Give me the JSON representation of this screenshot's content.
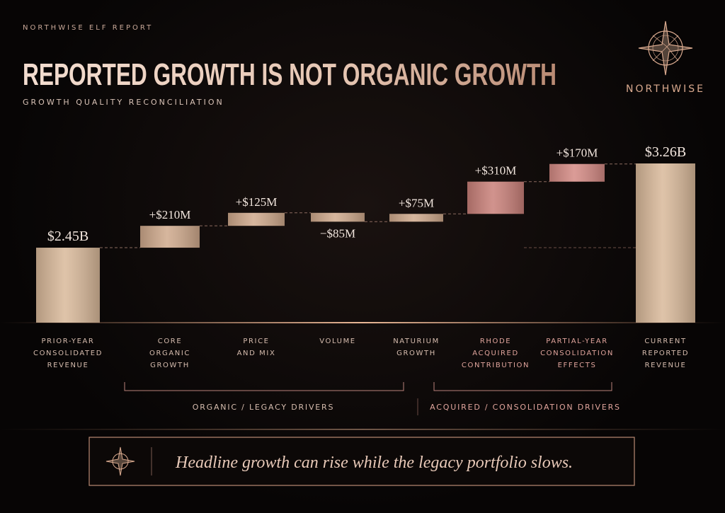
{
  "header": {
    "kicker": "NORTHWISE ELF REPORT",
    "title": "REPORTED GROWTH IS NOT ORGANIC GROWTH",
    "subtitle": "GROWTH QUALITY RECONCILIATION",
    "brand": "NORTHWISE"
  },
  "chart_data": {
    "type": "waterfall",
    "categories": [
      "PRIOR-YEAR\nCONSOLIDATED\nREVENUE",
      "CORE\nORGANIC\nGROWTH",
      "PRICE\nAND MIX",
      "VOLUME",
      "NATURIUM\nGROWTH",
      "RHODE\nACQUIRED\nCONTRIBUTION",
      "PARTIAL-YEAR\nCONSOLIDATION\nEFFECTS",
      "CURRENT\nREPORTED\nREVENUE"
    ],
    "values": [
      2450,
      210,
      125,
      -85,
      75,
      310,
      170,
      3260
    ],
    "value_labels": [
      "$2.45B",
      "+$210M",
      "+$125M",
      "−$85M",
      "+$75M",
      "+$310M",
      "+$170M",
      "$3.26B"
    ],
    "colors": [
      "#d9b99a",
      "#cfa98c",
      "#cfa98c",
      "#cfa98c",
      "#cfa98c",
      "#c98079",
      "#d48a84",
      "#d9b99a"
    ],
    "groups": [
      "ORGANIC / LEGACY DRIVERS",
      "ACQUIRED / CONSOLIDATION DRIVERS"
    ]
  },
  "callout": "Headline growth can rise while the legacy portfolio slows."
}
